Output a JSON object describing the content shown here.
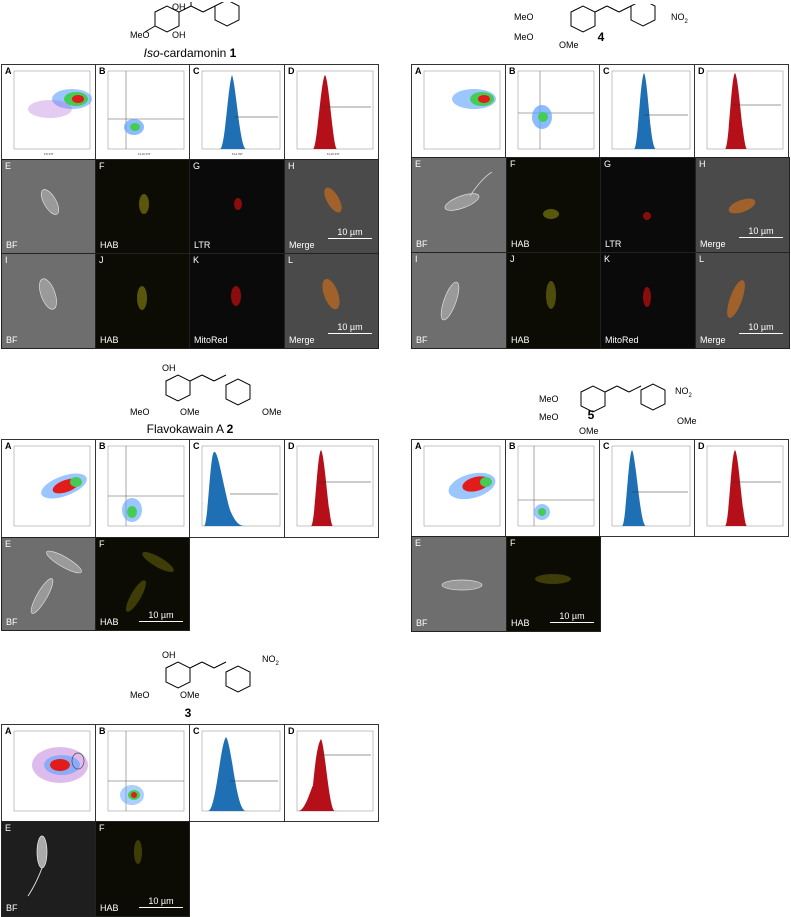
{
  "compounds": [
    {
      "name_prefix": "Iso",
      "name_rest": "-cardamonin ",
      "number": "1"
    },
    {
      "number": "4"
    },
    {
      "name_prefix": "",
      "name_rest": "Flavokawain A ",
      "number": "2"
    },
    {
      "number": "5"
    },
    {
      "number": "3"
    }
  ],
  "structure_labels": {
    "OH": "OH",
    "MeO": "MeO",
    "OMe": "OMe",
    "NO2": "NO",
    "sub2": "2"
  },
  "flow_panel_letters": [
    "A",
    "B",
    "C",
    "D"
  ],
  "axis_labels": {
    "ss": "SS INT",
    "fs": "FS INT",
    "fl4": "FL4 INT",
    "fl10": "FL10 INT",
    "count": "COUNT"
  },
  "micro_letters_row1": [
    "E",
    "F",
    "G",
    "H"
  ],
  "micro_letters_row2": [
    "I",
    "J",
    "K",
    "L"
  ],
  "micro_letters_short": [
    "E",
    "F"
  ],
  "micro_labels_row1": [
    "BF",
    "HAB",
    "LTR",
    "Merge"
  ],
  "micro_labels_row2": [
    "BF",
    "HAB",
    "MitoRed",
    "Merge"
  ],
  "micro_labels_short": [
    "BF",
    "HAB"
  ],
  "scale_bar": "10 µm"
}
